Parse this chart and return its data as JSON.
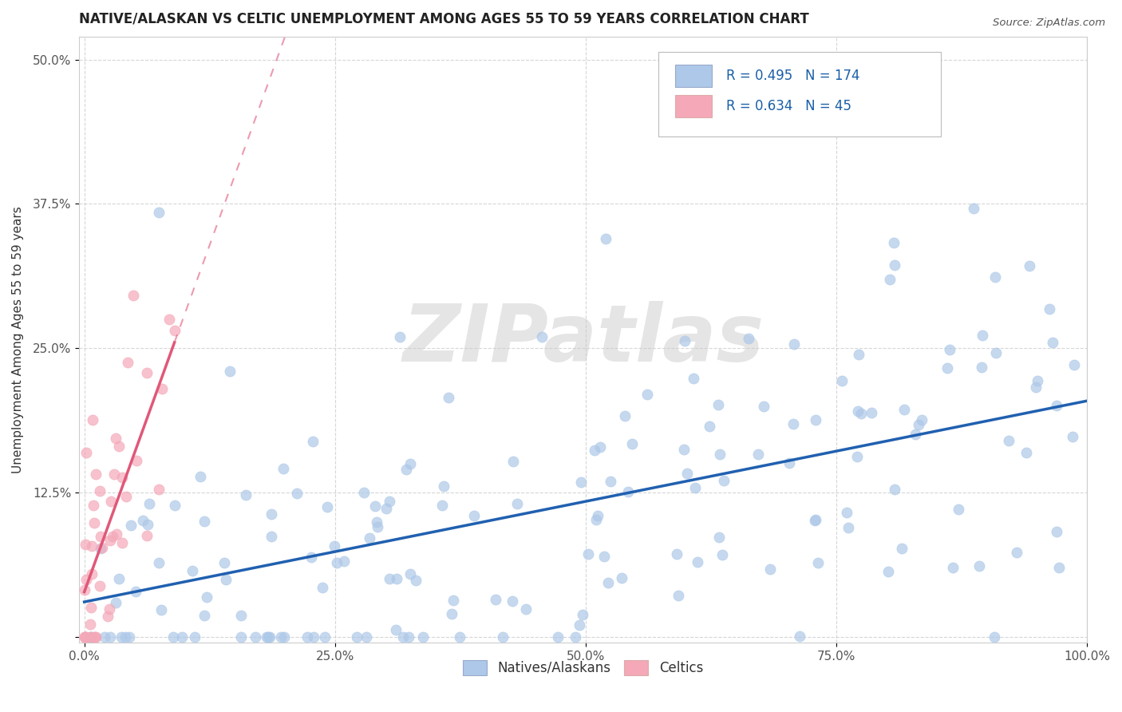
{
  "title": "NATIVE/ALASKAN VS CELTIC UNEMPLOYMENT AMONG AGES 55 TO 59 YEARS CORRELATION CHART",
  "source": "Source: ZipAtlas.com",
  "ylabel": "Unemployment Among Ages 55 to 59 years",
  "xlim": [
    -0.005,
    1.0
  ],
  "ylim": [
    -0.005,
    0.52
  ],
  "xticks": [
    0.0,
    0.25,
    0.5,
    0.75,
    1.0
  ],
  "xticklabels": [
    "0.0%",
    "25.0%",
    "50.0%",
    "75.0%",
    "100.0%"
  ],
  "yticks": [
    0.0,
    0.125,
    0.25,
    0.375,
    0.5
  ],
  "yticklabels": [
    "",
    "12.5%",
    "25.0%",
    "37.5%",
    "50.0%"
  ],
  "blue_R": 0.495,
  "blue_N": 174,
  "pink_R": 0.634,
  "pink_N": 45,
  "blue_color": "#adc8e8",
  "pink_color": "#f4a8b8",
  "blue_line_color": "#2060b0",
  "pink_line_color": "#e05878",
  "watermark": "ZIPatlas",
  "legend_blue_label": "Natives/Alaskans",
  "legend_pink_label": "Celtics",
  "title_fontsize": 12,
  "tick_fontsize": 11,
  "ylabel_fontsize": 11
}
